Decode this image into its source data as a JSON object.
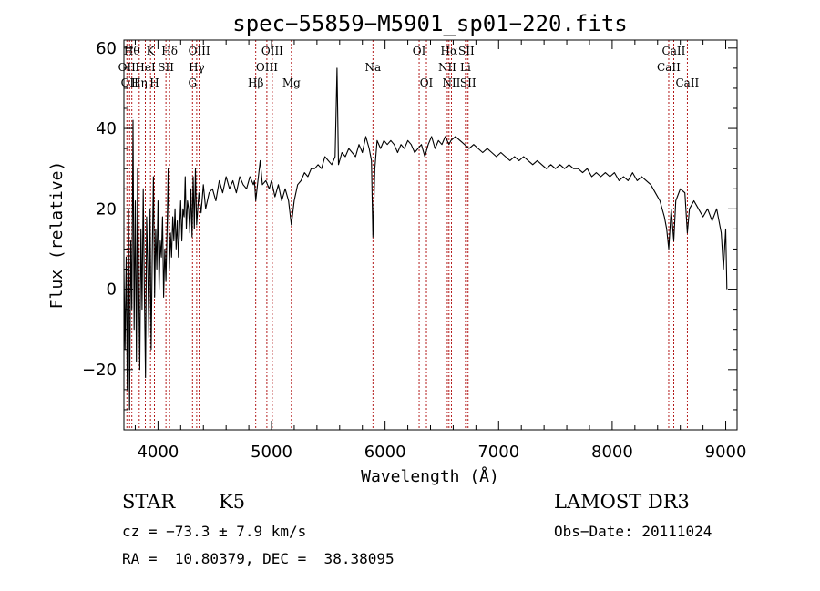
{
  "chart_data": {
    "type": "line",
    "title": "spec−55859−M5901_sp01−220.fits",
    "xlabel": "Wavelength (Å)",
    "ylabel": "Flux (relative)",
    "xlim": [
      3700,
      9100
    ],
    "ylim": [
      -35,
      62
    ],
    "xticks": [
      4000,
      5000,
      6000,
      7000,
      8000,
      9000
    ],
    "xtick_labels": [
      "4000",
      "5000",
      "6000",
      "7000",
      "8000",
      "9000"
    ],
    "yticks": [
      -20,
      0,
      20,
      40,
      60
    ],
    "ytick_labels": [
      "−20",
      "0",
      "20",
      "40",
      "60"
    ],
    "line_color": "#000000",
    "marker_color": "#aa0000",
    "series": [
      {
        "name": "flux",
        "points": [
          [
            3700,
            5
          ],
          [
            3710,
            -15
          ],
          [
            3720,
            8
          ],
          [
            3730,
            -25
          ],
          [
            3740,
            20
          ],
          [
            3750,
            -30
          ],
          [
            3760,
            12
          ],
          [
            3770,
            -5
          ],
          [
            3780,
            42
          ],
          [
            3790,
            -10
          ],
          [
            3800,
            22
          ],
          [
            3810,
            -18
          ],
          [
            3820,
            30
          ],
          [
            3830,
            2
          ],
          [
            3840,
            -20
          ],
          [
            3850,
            15
          ],
          [
            3860,
            -5
          ],
          [
            3870,
            25
          ],
          [
            3880,
            0
          ],
          [
            3890,
            -22
          ],
          [
            3900,
            18
          ],
          [
            3910,
            5
          ],
          [
            3920,
            -12
          ],
          [
            3930,
            20
          ],
          [
            3940,
            -15
          ],
          [
            3950,
            10
          ],
          [
            3960,
            28
          ],
          [
            3970,
            -2
          ],
          [
            3980,
            15
          ],
          [
            3990,
            5
          ],
          [
            4000,
            22
          ],
          [
            4010,
            0
          ],
          [
            4020,
            12
          ],
          [
            4030,
            8
          ],
          [
            4040,
            18
          ],
          [
            4050,
            -2
          ],
          [
            4060,
            10
          ],
          [
            4070,
            2
          ],
          [
            4080,
            15
          ],
          [
            4090,
            30
          ],
          [
            4100,
            5
          ],
          [
            4110,
            14
          ],
          [
            4120,
            8
          ],
          [
            4130,
            18
          ],
          [
            4140,
            12
          ],
          [
            4150,
            20
          ],
          [
            4160,
            10
          ],
          [
            4170,
            17
          ],
          [
            4180,
            8
          ],
          [
            4190,
            15
          ],
          [
            4200,
            22
          ],
          [
            4210,
            12
          ],
          [
            4220,
            20
          ],
          [
            4230,
            18
          ],
          [
            4240,
            28
          ],
          [
            4250,
            15
          ],
          [
            4260,
            22
          ],
          [
            4270,
            20
          ],
          [
            4280,
            14
          ],
          [
            4290,
            25
          ],
          [
            4300,
            13
          ],
          [
            4310,
            28
          ],
          [
            4320,
            15
          ],
          [
            4330,
            30
          ],
          [
            4340,
            16
          ],
          [
            4360,
            24
          ],
          [
            4380,
            19
          ],
          [
            4400,
            26
          ],
          [
            4420,
            20
          ],
          [
            4450,
            24
          ],
          [
            4480,
            25
          ],
          [
            4510,
            22
          ],
          [
            4540,
            27
          ],
          [
            4570,
            24
          ],
          [
            4600,
            28
          ],
          [
            4630,
            25
          ],
          [
            4660,
            27
          ],
          [
            4690,
            24
          ],
          [
            4720,
            28
          ],
          [
            4750,
            26
          ],
          [
            4780,
            25
          ],
          [
            4810,
            28
          ],
          [
            4840,
            26
          ],
          [
            4850,
            27
          ],
          [
            4861,
            22
          ],
          [
            4880,
            27
          ],
          [
            4900,
            32
          ],
          [
            4920,
            26
          ],
          [
            4950,
            27
          ],
          [
            4980,
            25
          ],
          [
            5000,
            27
          ],
          [
            5030,
            23
          ],
          [
            5060,
            26
          ],
          [
            5090,
            22
          ],
          [
            5120,
            25
          ],
          [
            5150,
            22
          ],
          [
            5175,
            16
          ],
          [
            5200,
            22
          ],
          [
            5230,
            26
          ],
          [
            5260,
            27
          ],
          [
            5290,
            29
          ],
          [
            5320,
            28
          ],
          [
            5350,
            30
          ],
          [
            5380,
            30
          ],
          [
            5410,
            31
          ],
          [
            5440,
            30
          ],
          [
            5470,
            33
          ],
          [
            5500,
            32
          ],
          [
            5530,
            31
          ],
          [
            5560,
            33
          ],
          [
            5577,
            55
          ],
          [
            5590,
            31
          ],
          [
            5620,
            34
          ],
          [
            5650,
            33
          ],
          [
            5680,
            35
          ],
          [
            5710,
            34
          ],
          [
            5740,
            33
          ],
          [
            5770,
            36
          ],
          [
            5800,
            34
          ],
          [
            5830,
            38
          ],
          [
            5860,
            35
          ],
          [
            5880,
            32
          ],
          [
            5893,
            13
          ],
          [
            5910,
            30
          ],
          [
            5930,
            37
          ],
          [
            5960,
            35
          ],
          [
            5990,
            37
          ],
          [
            6020,
            36
          ],
          [
            6050,
            37
          ],
          [
            6080,
            36
          ],
          [
            6110,
            34
          ],
          [
            6140,
            36
          ],
          [
            6170,
            35
          ],
          [
            6200,
            37
          ],
          [
            6230,
            36
          ],
          [
            6260,
            34
          ],
          [
            6290,
            35
          ],
          [
            6320,
            36
          ],
          [
            6350,
            33
          ],
          [
            6380,
            36
          ],
          [
            6410,
            38
          ],
          [
            6440,
            35
          ],
          [
            6470,
            37
          ],
          [
            6500,
            36
          ],
          [
            6530,
            38
          ],
          [
            6563,
            36
          ],
          [
            6580,
            37
          ],
          [
            6620,
            38
          ],
          [
            6660,
            37
          ],
          [
            6700,
            36
          ],
          [
            6740,
            35
          ],
          [
            6780,
            36
          ],
          [
            6820,
            35
          ],
          [
            6860,
            34
          ],
          [
            6900,
            35
          ],
          [
            6940,
            34
          ],
          [
            6980,
            33
          ],
          [
            7020,
            34
          ],
          [
            7060,
            33
          ],
          [
            7100,
            32
          ],
          [
            7140,
            33
          ],
          [
            7180,
            32
          ],
          [
            7220,
            33
          ],
          [
            7260,
            32
          ],
          [
            7300,
            31
          ],
          [
            7340,
            32
          ],
          [
            7380,
            31
          ],
          [
            7420,
            30
          ],
          [
            7460,
            31
          ],
          [
            7500,
            30
          ],
          [
            7540,
            31
          ],
          [
            7580,
            30
          ],
          [
            7620,
            31
          ],
          [
            7660,
            30
          ],
          [
            7700,
            30
          ],
          [
            7740,
            29
          ],
          [
            7780,
            30
          ],
          [
            7820,
            28
          ],
          [
            7860,
            29
          ],
          [
            7900,
            28
          ],
          [
            7940,
            29
          ],
          [
            7980,
            28
          ],
          [
            8020,
            29
          ],
          [
            8060,
            27
          ],
          [
            8100,
            28
          ],
          [
            8140,
            27
          ],
          [
            8180,
            29
          ],
          [
            8220,
            27
          ],
          [
            8260,
            28
          ],
          [
            8300,
            27
          ],
          [
            8340,
            26
          ],
          [
            8380,
            24
          ],
          [
            8420,
            22
          ],
          [
            8460,
            18
          ],
          [
            8480,
            15
          ],
          [
            8498,
            10
          ],
          [
            8520,
            20
          ],
          [
            8542,
            12
          ],
          [
            8560,
            22
          ],
          [
            8600,
            25
          ],
          [
            8640,
            24
          ],
          [
            8662,
            14
          ],
          [
            8680,
            20
          ],
          [
            8720,
            22
          ],
          [
            8760,
            20
          ],
          [
            8800,
            18
          ],
          [
            8840,
            20
          ],
          [
            8880,
            17
          ],
          [
            8920,
            20
          ],
          [
            8960,
            14
          ],
          [
            8980,
            5
          ],
          [
            9000,
            15
          ],
          [
            9010,
            0
          ]
        ]
      }
    ],
    "line_markers": [
      {
        "wavelength": 3726,
        "label": "OII",
        "row": 1
      },
      {
        "wavelength": 3750,
        "label": "OII",
        "row": 2
      },
      {
        "wavelength": 3770,
        "label": "Hθ",
        "row": 0
      },
      {
        "wavelength": 3835,
        "label": "Hη",
        "row": 2
      },
      {
        "wavelength": 3889,
        "label": "HeI",
        "row": 1
      },
      {
        "wavelength": 3934,
        "label": "K",
        "row": 0
      },
      {
        "wavelength": 3969,
        "label": "H",
        "row": 2
      },
      {
        "wavelength": 4070,
        "label": "SII",
        "row": 1
      },
      {
        "wavelength": 4102,
        "label": "Hδ",
        "row": 0
      },
      {
        "wavelength": 4304,
        "label": "G",
        "row": 2
      },
      {
        "wavelength": 4341,
        "label": "Hγ",
        "row": 1
      },
      {
        "wavelength": 4363,
        "label": "OIII",
        "row": 0
      },
      {
        "wavelength": 4861,
        "label": "Hβ",
        "row": 2
      },
      {
        "wavelength": 4959,
        "label": "OIII",
        "row": 1
      },
      {
        "wavelength": 5007,
        "label": "OIII",
        "row": 0
      },
      {
        "wavelength": 5175,
        "label": "Mg",
        "row": 2
      },
      {
        "wavelength": 5893,
        "label": "Na",
        "row": 1
      },
      {
        "wavelength": 6300,
        "label": "OI",
        "row": 0
      },
      {
        "wavelength": 6364,
        "label": "OI",
        "row": 2
      },
      {
        "wavelength": 6548,
        "label": "NII",
        "row": 1
      },
      {
        "wavelength": 6563,
        "label": "Hα",
        "row": 0
      },
      {
        "wavelength": 6584,
        "label": "NII",
        "row": 2
      },
      {
        "wavelength": 6708,
        "label": "Li",
        "row": 1
      },
      {
        "wavelength": 6716,
        "label": "SII",
        "row": 0
      },
      {
        "wavelength": 6731,
        "label": "SII",
        "row": 2
      },
      {
        "wavelength": 8498,
        "label": "CaII",
        "row": 1
      },
      {
        "wavelength": 8542,
        "label": "CaII",
        "row": 0
      },
      {
        "wavelength": 8662,
        "label": "CaII",
        "row": 2
      }
    ]
  },
  "info": {
    "class": "STAR",
    "subclass": "K5",
    "survey": "LAMOST DR3",
    "cz": "cz = −73.3 ± 7.9 km/s",
    "obs_date": "Obs−Date: 20111024",
    "coords": "RA =  10.80379, DEC =  38.38095"
  }
}
